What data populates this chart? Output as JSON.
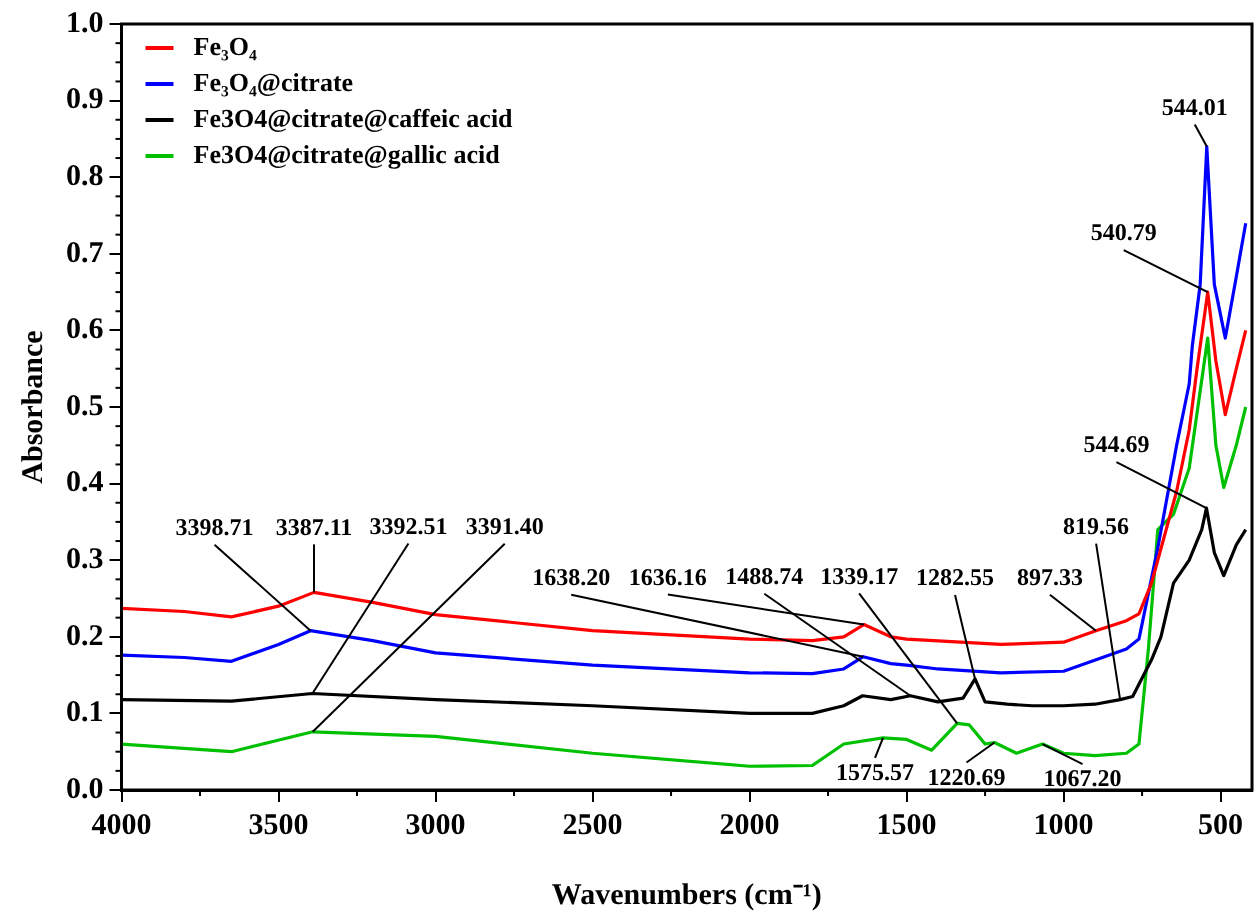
{
  "chart_data": {
    "type": "line",
    "xlabel": "Wavenumbers (cm⁻¹)",
    "ylabel": "Absorbance",
    "xlim": [
      4000,
      400
    ],
    "xticks": [
      4000,
      3500,
      3000,
      2500,
      2000,
      1500,
      1000,
      500
    ],
    "ylim": [
      0,
      1
    ],
    "yticks": [
      {
        "value": 0,
        "label": "0.0"
      },
      {
        "value": 0.1,
        "label": "0.1"
      },
      {
        "value": 0.2,
        "label": "0.2"
      },
      {
        "value": 0.3,
        "label": "0.3"
      },
      {
        "value": 0.4,
        "label": "0.4"
      },
      {
        "value": 0.5,
        "label": "0.5"
      },
      {
        "value": 0.6,
        "label": "0.6"
      },
      {
        "value": 0.7,
        "label": "0.7"
      },
      {
        "value": 0.8,
        "label": "0.8"
      },
      {
        "value": 0.9,
        "label": "0.9"
      },
      {
        "value": 1,
        "label": "1.0"
      }
    ],
    "grid": false,
    "legend": "top left",
    "marker": "none",
    "line_style": "solid",
    "series": [
      {
        "name": "Fe₃O₄",
        "color": "#ff0000",
        "x": [
          4000,
          3800,
          3650,
          3500,
          3387,
          3200,
          3000,
          2500,
          2000,
          1800,
          1700,
          1636,
          1550,
          1500,
          1200,
          1000,
          897,
          800,
          760,
          720,
          680,
          640,
          600,
          575,
          541,
          515,
          485,
          450,
          420
        ],
        "values": [
          0.237,
          0.233,
          0.226,
          0.24,
          0.258,
          0.245,
          0.229,
          0.208,
          0.197,
          0.195,
          0.2,
          0.216,
          0.2,
          0.197,
          0.19,
          0.193,
          0.208,
          0.221,
          0.23,
          0.27,
          0.33,
          0.39,
          0.47,
          0.55,
          0.65,
          0.56,
          0.49,
          0.55,
          0.6
        ]
      },
      {
        "name": "Fe₃O₄@citrate",
        "color": "#0000ff",
        "x": [
          4000,
          3800,
          3650,
          3500,
          3398,
          3200,
          3000,
          2500,
          2000,
          1800,
          1700,
          1638,
          1550,
          1500,
          1400,
          1200,
          1000,
          800,
          760,
          700,
          640,
          600,
          590,
          565,
          544,
          520,
          485,
          450,
          420
        ],
        "values": [
          0.176,
          0.173,
          0.168,
          0.19,
          0.208,
          0.195,
          0.179,
          0.163,
          0.153,
          0.152,
          0.158,
          0.174,
          0.165,
          0.163,
          0.158,
          0.153,
          0.155,
          0.184,
          0.197,
          0.316,
          0.45,
          0.53,
          0.58,
          0.66,
          0.84,
          0.66,
          0.59,
          0.67,
          0.74
        ]
      },
      {
        "name": "Fe3O4@citrate@caffeic acid",
        "color": "#000000",
        "x": [
          4000,
          3650,
          3392,
          3000,
          2500,
          2000,
          1800,
          1700,
          1640,
          1550,
          1488,
          1400,
          1320,
          1282,
          1250,
          1180,
          1100,
          1000,
          900,
          820,
          780,
          720,
          690,
          650,
          600,
          560,
          545,
          520,
          490,
          450,
          420
        ],
        "values": [
          0.118,
          0.116,
          0.126,
          0.118,
          0.11,
          0.1,
          0.1,
          0.11,
          0.123,
          0.118,
          0.123,
          0.115,
          0.12,
          0.145,
          0.115,
          0.112,
          0.11,
          0.11,
          0.112,
          0.118,
          0.122,
          0.17,
          0.2,
          0.27,
          0.3,
          0.34,
          0.368,
          0.31,
          0.28,
          0.32,
          0.34
        ]
      },
      {
        "name": "Fe3O4@citrate@gallic acid",
        "color": "#00c000",
        "x": [
          4000,
          3650,
          3391,
          3000,
          2500,
          2000,
          1800,
          1700,
          1575,
          1500,
          1420,
          1339,
          1300,
          1250,
          1220,
          1150,
          1067,
          1000,
          900,
          800,
          760,
          730,
          700,
          650,
          600,
          541,
          515,
          490,
          450,
          420
        ],
        "values": [
          0.06,
          0.05,
          0.076,
          0.07,
          0.048,
          0.031,
          0.032,
          0.06,
          0.068,
          0.066,
          0.052,
          0.087,
          0.085,
          0.06,
          0.062,
          0.048,
          0.06,
          0.048,
          0.045,
          0.048,
          0.06,
          0.184,
          0.34,
          0.36,
          0.42,
          0.59,
          0.45,
          0.395,
          0.45,
          0.5
        ]
      }
    ],
    "annotations": [
      {
        "text": "3387.11",
        "x": 3387,
        "y": 0.258
      },
      {
        "text": "3398.71",
        "x": 3398,
        "y": 0.208
      },
      {
        "text": "3392.51",
        "x": 3392,
        "y": 0.126
      },
      {
        "text": "3391.40",
        "x": 3391,
        "y": 0.076
      },
      {
        "text": "1636.16",
        "x": 1636,
        "y": 0.216
      },
      {
        "text": "1638.20",
        "x": 1638,
        "y": 0.174
      },
      {
        "text": "1488.74",
        "x": 1488,
        "y": 0.123
      },
      {
        "text": "1282.55",
        "x": 1282,
        "y": 0.145
      },
      {
        "text": "897.33",
        "x": 897,
        "y": 0.208
      },
      {
        "text": "819.56",
        "x": 820,
        "y": 0.118
      },
      {
        "text": "1575.57",
        "x": 1575,
        "y": 0.068
      },
      {
        "text": "1339.17",
        "x": 1339,
        "y": 0.087
      },
      {
        "text": "1220.69",
        "x": 1220,
        "y": 0.062
      },
      {
        "text": "1067.20",
        "x": 1067,
        "y": 0.06
      },
      {
        "text": "544.01",
        "x": 544,
        "y": 0.84
      },
      {
        "text": "540.79",
        "x": 541,
        "y": 0.65
      },
      {
        "text": "544.69",
        "x": 545,
        "y": 0.368
      }
    ]
  }
}
